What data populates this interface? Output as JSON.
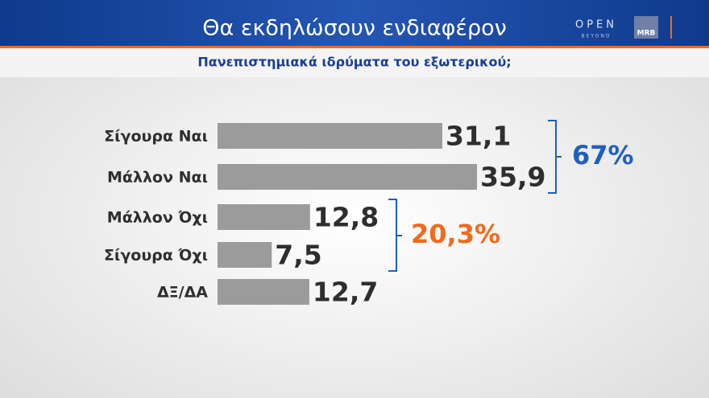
{
  "chart_data": {
    "type": "bar",
    "orientation": "horizontal",
    "title": "Θα εκδηλώσουν ενδιαφέρον",
    "subtitle": "Πανεπιστημιακά ιδρύματα του εξωτερικού;",
    "categories": [
      "Σίγουρα Ναι",
      "Μάλλον Ναι",
      "Μάλλον Όχι",
      "Σίγουρα Όχι",
      "ΔΞ/ΔΑ"
    ],
    "values": [
      31.1,
      35.9,
      12.8,
      7.5,
      12.7
    ],
    "value_labels": [
      "31,1",
      "35,9",
      "12,8",
      "7,5",
      "12,7"
    ],
    "color": "#9b9b9b",
    "annotations": [
      {
        "text": "67%",
        "color": "#1f5fbf"
      },
      {
        "text": "20,3%",
        "color": "#f26a1b"
      }
    ]
  },
  "branding": {
    "open": "OPEN",
    "beyond": "BEYOND",
    "mrb": "MRB"
  }
}
